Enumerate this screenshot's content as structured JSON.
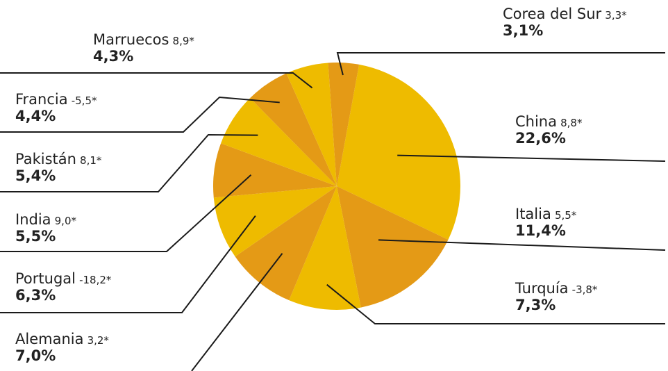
{
  "colors": {
    "dark": "#e49a16",
    "light": "#eebb00",
    "line": "#1a1a1a",
    "text": "#222222"
  },
  "chart_data": {
    "type": "pie",
    "title": "",
    "slices": [
      {
        "label": "China",
        "growth": "8,8*",
        "value": 22.6,
        "value_label": "22,6%"
      },
      {
        "label": "Italia",
        "growth": "5,5*",
        "value": 11.4,
        "value_label": "11,4%"
      },
      {
        "label": "Turquía",
        "growth": "-3,8*",
        "value": 7.3,
        "value_label": "7,3%"
      },
      {
        "label": "Alemania",
        "growth": "3,2*",
        "value": 7.0,
        "value_label": "7,0%"
      },
      {
        "label": "Portugal",
        "growth": "-18,2*",
        "value": 6.3,
        "value_label": "6,3%"
      },
      {
        "label": "India",
        "growth": "9,0*",
        "value": 5.5,
        "value_label": "5,5%"
      },
      {
        "label": "Pakistán",
        "growth": "8,1*",
        "value": 5.4,
        "value_label": "5,4%"
      },
      {
        "label": "Francia",
        "growth": "-5,5*",
        "value": 4.4,
        "value_label": "4,4%"
      },
      {
        "label": "Marruecos",
        "growth": "8,9*",
        "value": 4.3,
        "value_label": "4,3%"
      },
      {
        "label": "Corea del Sur",
        "growth": "3,3*",
        "value": 3.1,
        "value_label": "3,1%"
      }
    ]
  }
}
